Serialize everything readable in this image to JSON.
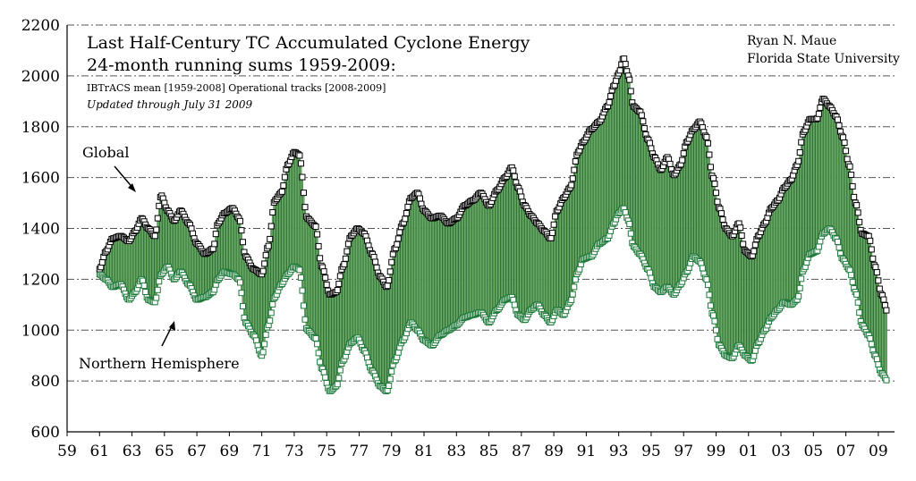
{
  "chart_data": {
    "type": "line",
    "title_line1": "Last Half-Century TC Accumulated Cyclone Energy",
    "title_line2": "24-month running sums  1959-2009:",
    "subtitle": "IBTrACS mean [1959-2008] Operational tracks [2008-2009]",
    "updated": "Updated through July 31 2009",
    "credit_line1": "Ryan N. Maue",
    "credit_line2": "Florida State University",
    "ylim": [
      600,
      2200
    ],
    "yticks": [
      600,
      800,
      1000,
      1200,
      1400,
      1600,
      1800,
      2000,
      2200
    ],
    "xlim": [
      1959,
      2010
    ],
    "xticks": [
      1959,
      1961,
      1963,
      1965,
      1967,
      1969,
      1971,
      1973,
      1975,
      1977,
      1979,
      1981,
      1983,
      1985,
      1987,
      1989,
      1991,
      1993,
      1995,
      1997,
      1999,
      2001,
      2003,
      2005,
      2007,
      2009
    ],
    "xtick_labels": [
      "59",
      "61",
      "63",
      "65",
      "67",
      "69",
      "71",
      "73",
      "75",
      "77",
      "79",
      "81",
      "83",
      "85",
      "87",
      "89",
      "91",
      "93",
      "95",
      "97",
      "99",
      "01",
      "03",
      "05",
      "07",
      "09"
    ],
    "grid": "horizontal dash-dot",
    "colors": {
      "global_marker": "#000000",
      "nh_marker": "#1e7a3a",
      "fill": "#8ccf7e",
      "fill_stroke": "#1e5e2a"
    },
    "series": [
      {
        "name": "Global",
        "anchors": [
          [
            1961.0,
            1240
          ],
          [
            1961.4,
            1310
          ],
          [
            1961.8,
            1360
          ],
          [
            1962.3,
            1370
          ],
          [
            1962.8,
            1350
          ],
          [
            1963.2,
            1390
          ],
          [
            1963.6,
            1440
          ],
          [
            1964.0,
            1400
          ],
          [
            1964.4,
            1370
          ],
          [
            1964.8,
            1530
          ],
          [
            1965.2,
            1470
          ],
          [
            1965.6,
            1430
          ],
          [
            1966.0,
            1470
          ],
          [
            1966.5,
            1420
          ],
          [
            1967.0,
            1340
          ],
          [
            1967.5,
            1300
          ],
          [
            1968.0,
            1320
          ],
          [
            1968.3,
            1420
          ],
          [
            1968.7,
            1460
          ],
          [
            1969.2,
            1480
          ],
          [
            1969.6,
            1440
          ],
          [
            1970.0,
            1290
          ],
          [
            1970.5,
            1240
          ],
          [
            1971.0,
            1220
          ],
          [
            1971.4,
            1330
          ],
          [
            1971.8,
            1510
          ],
          [
            1972.2,
            1540
          ],
          [
            1972.6,
            1650
          ],
          [
            1973.0,
            1700
          ],
          [
            1973.3,
            1690
          ],
          [
            1973.8,
            1440
          ],
          [
            1974.3,
            1410
          ],
          [
            1974.7,
            1250
          ],
          [
            1975.2,
            1140
          ],
          [
            1975.6,
            1150
          ],
          [
            1976.0,
            1250
          ],
          [
            1976.5,
            1370
          ],
          [
            1976.9,
            1400
          ],
          [
            1977.3,
            1380
          ],
          [
            1977.8,
            1300
          ],
          [
            1978.3,
            1210
          ],
          [
            1978.7,
            1170
          ],
          [
            1979.2,
            1320
          ],
          [
            1979.7,
            1420
          ],
          [
            1980.2,
            1520
          ],
          [
            1980.6,
            1540
          ],
          [
            1981.0,
            1470
          ],
          [
            1981.5,
            1440
          ],
          [
            1982.0,
            1450
          ],
          [
            1982.5,
            1420
          ],
          [
            1983.0,
            1440
          ],
          [
            1983.5,
            1490
          ],
          [
            1984.0,
            1510
          ],
          [
            1984.5,
            1540
          ],
          [
            1985.0,
            1490
          ],
          [
            1985.5,
            1550
          ],
          [
            1986.0,
            1600
          ],
          [
            1986.4,
            1640
          ],
          [
            1986.8,
            1560
          ],
          [
            1987.2,
            1490
          ],
          [
            1987.6,
            1450
          ],
          [
            1988.0,
            1420
          ],
          [
            1988.4,
            1390
          ],
          [
            1988.8,
            1360
          ],
          [
            1989.2,
            1470
          ],
          [
            1989.6,
            1520
          ],
          [
            1990.0,
            1560
          ],
          [
            1990.5,
            1700
          ],
          [
            1990.8,
            1740
          ],
          [
            1991.3,
            1790
          ],
          [
            1991.8,
            1820
          ],
          [
            1992.3,
            1880
          ],
          [
            1992.7,
            1960
          ],
          [
            1993.0,
            2010
          ],
          [
            1993.3,
            2070
          ],
          [
            1993.6,
            2000
          ],
          [
            1993.9,
            1880
          ],
          [
            1994.3,
            1860
          ],
          [
            1994.8,
            1750
          ],
          [
            1995.2,
            1680
          ],
          [
            1995.6,
            1630
          ],
          [
            1996.0,
            1680
          ],
          [
            1996.4,
            1610
          ],
          [
            1996.8,
            1650
          ],
          [
            1997.2,
            1740
          ],
          [
            1997.6,
            1790
          ],
          [
            1998.0,
            1820
          ],
          [
            1998.4,
            1760
          ],
          [
            1998.8,
            1600
          ],
          [
            1999.2,
            1480
          ],
          [
            1999.6,
            1400
          ],
          [
            2000.0,
            1370
          ],
          [
            2000.4,
            1420
          ],
          [
            2000.8,
            1310
          ],
          [
            2001.2,
            1290
          ],
          [
            2001.6,
            1370
          ],
          [
            2002.0,
            1420
          ],
          [
            2002.4,
            1480
          ],
          [
            2002.8,
            1510
          ],
          [
            2003.2,
            1560
          ],
          [
            2003.6,
            1590
          ],
          [
            2004.0,
            1650
          ],
          [
            2004.4,
            1780
          ],
          [
            2004.8,
            1830
          ],
          [
            2005.2,
            1830
          ],
          [
            2005.6,
            1910
          ],
          [
            2006.0,
            1880
          ],
          [
            2006.4,
            1840
          ],
          [
            2006.8,
            1760
          ],
          [
            2007.2,
            1650
          ],
          [
            2007.6,
            1500
          ],
          [
            2008.0,
            1380
          ],
          [
            2008.4,
            1370
          ],
          [
            2008.8,
            1250
          ],
          [
            2009.2,
            1140
          ],
          [
            2009.58,
            1070
          ]
        ]
      },
      {
        "name": "Northern Hemisphere",
        "anchors": [
          [
            1961.0,
            1220
          ],
          [
            1961.4,
            1200
          ],
          [
            1961.8,
            1170
          ],
          [
            1962.3,
            1180
          ],
          [
            1962.8,
            1120
          ],
          [
            1963.2,
            1150
          ],
          [
            1963.6,
            1200
          ],
          [
            1964.0,
            1120
          ],
          [
            1964.4,
            1110
          ],
          [
            1964.8,
            1220
          ],
          [
            1965.2,
            1250
          ],
          [
            1965.6,
            1200
          ],
          [
            1966.0,
            1230
          ],
          [
            1966.5,
            1180
          ],
          [
            1967.0,
            1120
          ],
          [
            1967.5,
            1130
          ],
          [
            1968.0,
            1150
          ],
          [
            1968.3,
            1200
          ],
          [
            1968.7,
            1230
          ],
          [
            1969.2,
            1220
          ],
          [
            1969.6,
            1200
          ],
          [
            1970.0,
            1030
          ],
          [
            1970.5,
            980
          ],
          [
            1971.0,
            900
          ],
          [
            1971.4,
            1020
          ],
          [
            1971.8,
            1130
          ],
          [
            1972.2,
            1180
          ],
          [
            1972.6,
            1220
          ],
          [
            1973.0,
            1250
          ],
          [
            1973.3,
            1240
          ],
          [
            1973.8,
            1000
          ],
          [
            1974.3,
            970
          ],
          [
            1974.7,
            850
          ],
          [
            1975.2,
            760
          ],
          [
            1975.6,
            780
          ],
          [
            1976.0,
            880
          ],
          [
            1976.5,
            950
          ],
          [
            1976.9,
            970
          ],
          [
            1977.3,
            920
          ],
          [
            1977.8,
            840
          ],
          [
            1978.3,
            780
          ],
          [
            1978.7,
            760
          ],
          [
            1979.2,
            880
          ],
          [
            1979.7,
            960
          ],
          [
            1980.2,
            1030
          ],
          [
            1980.6,
            1000
          ],
          [
            1981.0,
            960
          ],
          [
            1981.5,
            940
          ],
          [
            1982.0,
            980
          ],
          [
            1982.5,
            1000
          ],
          [
            1983.0,
            1020
          ],
          [
            1983.5,
            1050
          ],
          [
            1984.0,
            1060
          ],
          [
            1984.5,
            1070
          ],
          [
            1985.0,
            1030
          ],
          [
            1985.5,
            1080
          ],
          [
            1986.0,
            1120
          ],
          [
            1986.4,
            1130
          ],
          [
            1986.8,
            1060
          ],
          [
            1987.2,
            1040
          ],
          [
            1987.6,
            1080
          ],
          [
            1988.0,
            1100
          ],
          [
            1988.4,
            1060
          ],
          [
            1988.8,
            1030
          ],
          [
            1989.2,
            1080
          ],
          [
            1989.6,
            1060
          ],
          [
            1990.0,
            1110
          ],
          [
            1990.5,
            1230
          ],
          [
            1990.8,
            1280
          ],
          [
            1991.3,
            1290
          ],
          [
            1991.8,
            1340
          ],
          [
            1992.3,
            1360
          ],
          [
            1992.7,
            1420
          ],
          [
            1993.0,
            1460
          ],
          [
            1993.3,
            1480
          ],
          [
            1993.6,
            1430
          ],
          [
            1993.9,
            1330
          ],
          [
            1994.3,
            1300
          ],
          [
            1994.8,
            1240
          ],
          [
            1995.2,
            1170
          ],
          [
            1995.6,
            1150
          ],
          [
            1996.0,
            1170
          ],
          [
            1996.4,
            1140
          ],
          [
            1996.8,
            1180
          ],
          [
            1997.2,
            1230
          ],
          [
            1997.6,
            1290
          ],
          [
            1998.0,
            1270
          ],
          [
            1998.4,
            1200
          ],
          [
            1998.8,
            1060
          ],
          [
            1999.2,
            940
          ],
          [
            1999.6,
            900
          ],
          [
            2000.0,
            890
          ],
          [
            2000.4,
            940
          ],
          [
            2000.8,
            900
          ],
          [
            2001.2,
            880
          ],
          [
            2001.6,
            950
          ],
          [
            2002.0,
            1000
          ],
          [
            2002.4,
            1050
          ],
          [
            2002.8,
            1080
          ],
          [
            2003.2,
            1110
          ],
          [
            2003.6,
            1100
          ],
          [
            2004.0,
            1120
          ],
          [
            2004.4,
            1240
          ],
          [
            2004.8,
            1300
          ],
          [
            2005.2,
            1310
          ],
          [
            2005.6,
            1380
          ],
          [
            2006.0,
            1400
          ],
          [
            2006.4,
            1360
          ],
          [
            2006.8,
            1280
          ],
          [
            2007.2,
            1240
          ],
          [
            2007.6,
            1150
          ],
          [
            2008.0,
            1020
          ],
          [
            2008.4,
            980
          ],
          [
            2008.8,
            900
          ],
          [
            2009.2,
            830
          ],
          [
            2009.58,
            800
          ]
        ]
      }
    ],
    "annotations": [
      {
        "text": "Global",
        "arrow": true
      },
      {
        "text": "Northern Hemisphere",
        "arrow": true
      }
    ]
  }
}
